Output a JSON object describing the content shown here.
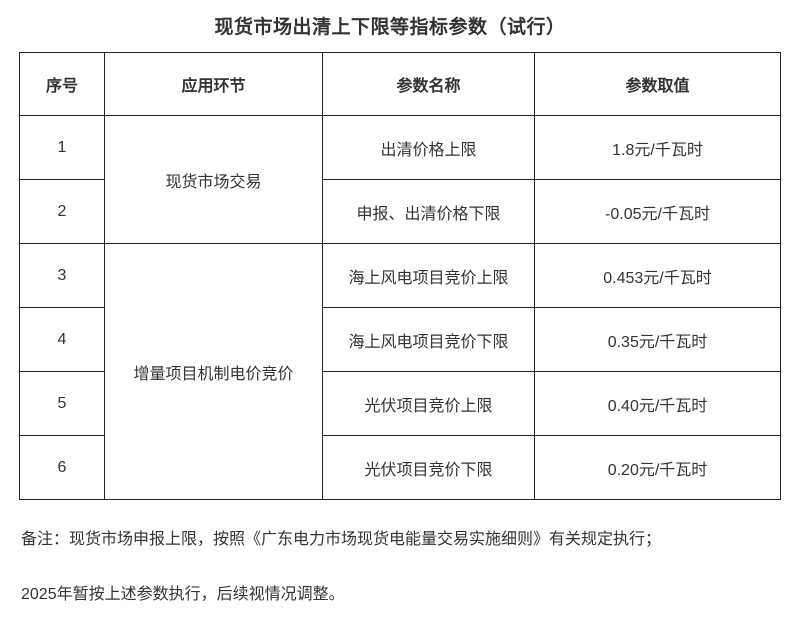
{
  "title": "现货市场出清上下限等指标参数（试行）",
  "table": {
    "headers": [
      "序号",
      "应用环节",
      "参数名称",
      "参数取值"
    ],
    "stages": [
      {
        "label": "现货市场交易",
        "rowspan": 2
      },
      {
        "label": "增量项目机制电价竞价",
        "rowspan": 4
      }
    ],
    "rows": [
      {
        "no": "1",
        "param": "出清价格上限",
        "value": "1.8元/千瓦时"
      },
      {
        "no": "2",
        "param": "申报、出清价格下限",
        "value": "-0.05元/千瓦时"
      },
      {
        "no": "3",
        "param": "海上风电项目竞价上限",
        "value": "0.453元/千瓦时"
      },
      {
        "no": "4",
        "param": "海上风电项目竞价下限",
        "value": "0.35元/千瓦时"
      },
      {
        "no": "5",
        "param": "光伏项目竞价上限",
        "value": "0.40元/千瓦时"
      },
      {
        "no": "6",
        "param": "光伏项目竞价下限",
        "value": "0.20元/千瓦时"
      }
    ]
  },
  "notes": [
    "备注：现货市场申报上限，按照《广东电力市场现货电能量交易实施细则》有关规定执行；",
    "2025年暂按上述参数执行，后续视情况调整。"
  ],
  "colors": {
    "text": "#333333",
    "border": "#222222",
    "background": "#ffffff"
  }
}
